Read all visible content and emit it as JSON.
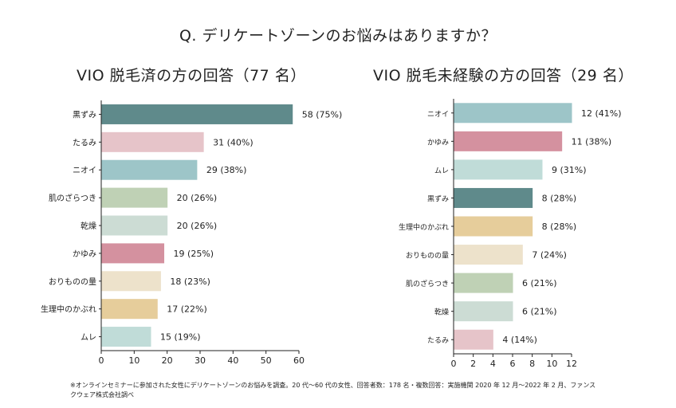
{
  "question": "Q. デリケートゾーンのお悩みはありますか？",
  "note": "※オンラインセミナーに参加された女性にデリケートゾーンのお悩みを調査。20 代〜60 代の女性、回答者数：178 名・複数回答：実施機関 2020 年 12 月〜2022 年 2 月、ファンスクウェア株式会社調べ",
  "chart_data": [
    {
      "type": "bar",
      "orientation": "horizontal",
      "title": "VIO 脱毛済の方の回答（77 名）",
      "categories": [
        "黒ずみ",
        "たるみ",
        "ニオイ",
        "肌のざらつき",
        "乾燥",
        "かゆみ",
        "おりものの量",
        "生理中のかぶれ",
        "ムレ"
      ],
      "values": [
        58,
        31,
        29,
        20,
        20,
        19,
        18,
        17,
        15
      ],
      "percents": [
        "75%",
        "40%",
        "38%",
        "26%",
        "26%",
        "25%",
        "23%",
        "22%",
        "19%"
      ],
      "value_labels": [
        "58 (75%)",
        "31 (40%)",
        "29 (38%)",
        "20 (26%)",
        "20 (26%)",
        "19 (25%)",
        "18 (23%)",
        "17 (22%)",
        "15 (19%)"
      ],
      "colors": [
        "#5f8a8b",
        "#e6c4c9",
        "#9dc5c8",
        "#bfd1b5",
        "#ccdcd4",
        "#d4919f",
        "#ede2cb",
        "#e6cd9b",
        "#c0dcd8"
      ],
      "xlim": [
        0,
        60
      ],
      "xticks": [
        "0",
        "10",
        "20",
        "30",
        "40",
        "50",
        "60"
      ],
      "xlabel": "",
      "ylabel": ""
    },
    {
      "type": "bar",
      "orientation": "horizontal",
      "title": "VIO 脱毛未経験の方の回答（29 名）",
      "categories": [
        "ニオイ",
        "かゆみ",
        "ムレ",
        "黒ずみ",
        "生理中のかぶれ",
        "おりものの量",
        "肌のざらつき",
        "乾燥",
        "たるみ"
      ],
      "values": [
        12,
        11,
        9,
        8,
        8,
        7,
        6,
        6,
        4
      ],
      "percents": [
        "41%",
        "38%",
        "31%",
        "28%",
        "28%",
        "24%",
        "21%",
        "21%",
        "14%"
      ],
      "value_labels": [
        "12 (41%)",
        "11 (38%)",
        "9 (31%)",
        "8 (28%)",
        "8 (28%)",
        "7 (24%)",
        "6 (21%)",
        "6 (21%)",
        "4 (14%)"
      ],
      "colors": [
        "#9dc5c8",
        "#d4919f",
        "#c0dcd8",
        "#5f8a8b",
        "#e6cd9b",
        "#ede2cb",
        "#bfd1b5",
        "#ccdcd4",
        "#e6c4c9"
      ],
      "xlim": [
        0,
        12
      ],
      "xticks": [
        "0",
        "2",
        "4",
        "6",
        "8",
        "10",
        "12"
      ],
      "xlabel": "",
      "ylabel": ""
    }
  ]
}
